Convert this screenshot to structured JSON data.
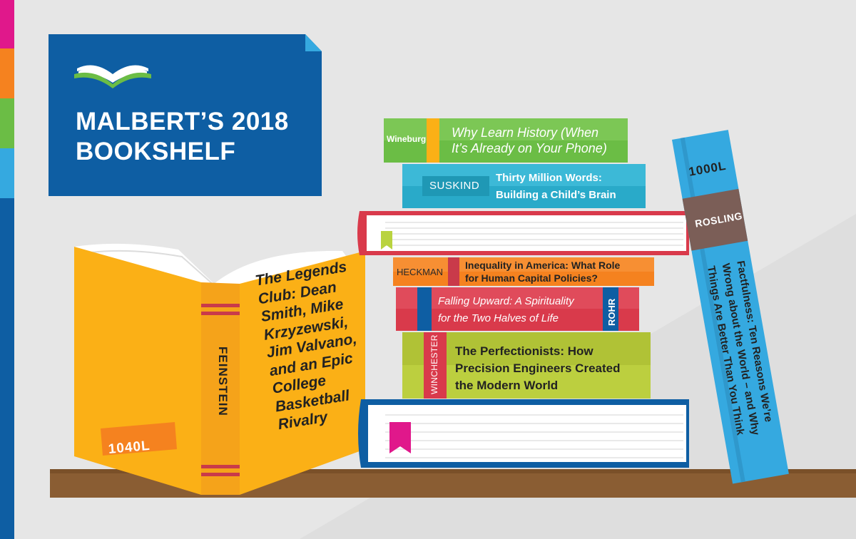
{
  "header": {
    "title_line1": "MALBERT’S 2018",
    "title_line2": "BOOKSHELF",
    "logo_icon": "open-book-icon"
  },
  "colors": {
    "background": "#e6e6e6",
    "title_card": "#0e5ea3",
    "shelf": "#8a5d33",
    "strip": [
      "#e0188b",
      "#f5821f",
      "#6bbd45",
      "#35a9e0",
      "#0e5ea3"
    ]
  },
  "books": {
    "wineburg": {
      "author": "Wineburg",
      "title_line1": "Why Learn History (When",
      "title_line2": "It’s Already on Your Phone)"
    },
    "suskind": {
      "author": "SUSKIND",
      "title_line1": "Thirty Million Words:",
      "title_line2": "Building a Child’s Brain"
    },
    "heckman": {
      "author": "HECKMAN",
      "title_line1": "Inequality in America: What Role",
      "title_line2": "for Human Capital Policies?"
    },
    "rohr": {
      "author": "ROHR",
      "title_line1": "Falling Upward: A Spirituality",
      "title_line2": "for the Two Halves of Life"
    },
    "winchester": {
      "author": "WINCHESTER",
      "title_line1": "The Perfectionists: How",
      "title_line2": "Precision Engineers Created",
      "title_line3": "the Modern World"
    },
    "feinstein": {
      "author": "FEINSTEIN",
      "lexile": "1040L",
      "title_lines": [
        "The Legends",
        "Club: Dean",
        "Smith, Mike",
        "Krzyzewski,",
        "Jim Valvano,",
        "and an Epic",
        "College",
        "Basketball",
        "Rivalry"
      ]
    },
    "rosling": {
      "author": "ROSLING",
      "lexile": "1000L",
      "title_line1": "Factfulness: Ten Reasons We’re",
      "title_line2": "Wrong about the World – and Why",
      "title_line3": "Things Are Better Than You Think"
    }
  }
}
